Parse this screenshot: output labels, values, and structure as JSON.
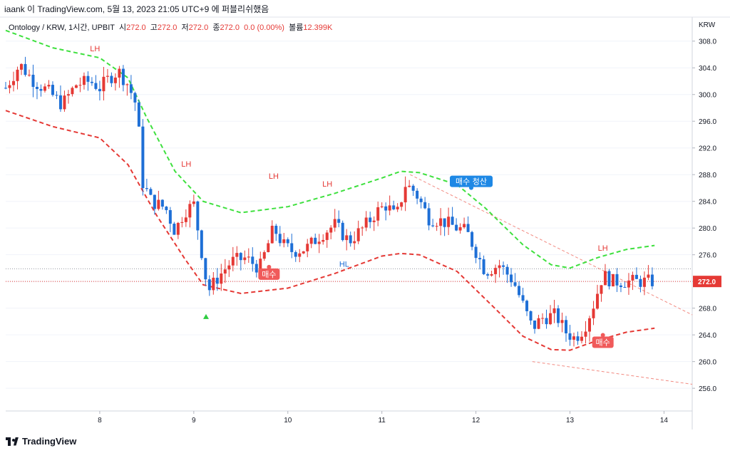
{
  "header": {
    "publish_line": "iaank 이 TradingView.com, 5월 13, 2023 21:05 UTC+9 에 퍼블리쉬했음"
  },
  "legend": {
    "symbol": "Ontology / KRW, 1시간, UPBIT",
    "open_label": "시",
    "open_value": "272.0",
    "high_label": "고",
    "high_value": "272.0",
    "low_label": "저",
    "low_value": "272.0",
    "close_label": "종",
    "close_value": "272.0",
    "change": "0.0 (0.00%)",
    "volume_label": "볼륨",
    "volume_value": "12.399K"
  },
  "axis": {
    "currency": "KRW",
    "last_price_label": "272.0"
  },
  "branding": {
    "logo_text": "TradingView"
  },
  "colors": {
    "up": "#e53935",
    "down": "#1e6fd6",
    "upper_band": "#3ee03e",
    "lower_band": "#e53935",
    "price_line": "#e53935",
    "gridline": "#f0f3fa",
    "buy_marker": "#f05a5a",
    "exit_marker": "#1e88e5"
  },
  "chart_data": {
    "type": "candlestick",
    "y_ticks": [
      308.0,
      304.0,
      300.0,
      296.0,
      292.0,
      288.0,
      284.0,
      280.0,
      276.0,
      272.0,
      268.0,
      264.0,
      260.0,
      256.0
    ],
    "ylim": [
      252.6,
      311.6
    ],
    "x_ticks": [
      {
        "label": "8",
        "x": 8
      },
      {
        "label": "9",
        "x": 9
      },
      {
        "label": "10",
        "x": 10
      },
      {
        "label": "11",
        "x": 11
      },
      {
        "label": "12",
        "x": 12
      },
      {
        "label": "13",
        "x": 13
      },
      {
        "label": "14",
        "x": 14
      }
    ],
    "xlim": [
      7.0,
      14.3
    ],
    "last_price": 272.0,
    "horizontal_dotted_level": 273.9,
    "candles_anchor": [
      [
        7.0,
        301.0
      ],
      [
        7.15,
        304.5
      ],
      [
        7.3,
        302.0
      ],
      [
        7.45,
        300.5
      ],
      [
        7.6,
        298.5
      ],
      [
        7.75,
        301.5
      ],
      [
        7.9,
        302.0
      ],
      [
        8.0,
        301.0
      ],
      [
        8.1,
        302.5
      ],
      [
        8.2,
        303.5
      ],
      [
        8.3,
        301.5
      ],
      [
        8.4,
        298.0
      ],
      [
        8.45,
        287.0
      ],
      [
        8.55,
        284.0
      ],
      [
        8.7,
        283.0
      ],
      [
        8.8,
        279.5
      ],
      [
        8.9,
        282.5
      ],
      [
        9.0,
        283.5
      ],
      [
        9.1,
        275.0
      ],
      [
        9.15,
        270.5
      ],
      [
        9.25,
        272.5
      ],
      [
        9.4,
        275.0
      ],
      [
        9.55,
        275.5
      ],
      [
        9.7,
        274.0
      ],
      [
        9.85,
        280.0
      ],
      [
        9.95,
        277.5
      ],
      [
        10.05,
        276.5
      ],
      [
        10.2,
        277.0
      ],
      [
        10.35,
        279.0
      ],
      [
        10.5,
        280.5
      ],
      [
        10.65,
        278.0
      ],
      [
        10.8,
        280.0
      ],
      [
        10.95,
        282.5
      ],
      [
        11.05,
        283.5
      ],
      [
        11.15,
        281.5
      ],
      [
        11.25,
        286.5
      ],
      [
        11.35,
        285.5
      ],
      [
        11.5,
        281.5
      ],
      [
        11.65,
        281.0
      ],
      [
        11.8,
        280.0
      ],
      [
        11.9,
        279.5
      ],
      [
        12.0,
        276.5
      ],
      [
        12.1,
        273.5
      ],
      [
        12.25,
        274.5
      ],
      [
        12.4,
        272.0
      ],
      [
        12.5,
        268.5
      ],
      [
        12.6,
        265.0
      ],
      [
        12.7,
        266.5
      ],
      [
        12.85,
        267.0
      ],
      [
        12.95,
        264.5
      ],
      [
        13.05,
        263.5
      ],
      [
        13.15,
        265.0
      ],
      [
        13.25,
        268.5
      ],
      [
        13.35,
        273.0
      ],
      [
        13.45,
        272.0
      ],
      [
        13.55,
        272.0
      ],
      [
        13.7,
        272.0
      ],
      [
        13.85,
        272.0
      ]
    ],
    "upper_band": [
      [
        7.0,
        309.6
      ],
      [
        7.5,
        307.0
      ],
      [
        8.0,
        305.5
      ],
      [
        8.3,
        302.5
      ],
      [
        8.5,
        296.5
      ],
      [
        8.8,
        288.5
      ],
      [
        9.1,
        284.0
      ],
      [
        9.5,
        282.3
      ],
      [
        10.0,
        283.2
      ],
      [
        10.5,
        285.2
      ],
      [
        11.0,
        287.5
      ],
      [
        11.2,
        288.5
      ],
      [
        11.4,
        288.3
      ],
      [
        11.8,
        286.5
      ],
      [
        12.1,
        283.0
      ],
      [
        12.5,
        277.5
      ],
      [
        12.8,
        274.5
      ],
      [
        13.0,
        274.0
      ],
      [
        13.3,
        275.6
      ],
      [
        13.6,
        276.8
      ],
      [
        13.9,
        277.4
      ]
    ],
    "lower_band": [
      [
        7.0,
        297.6
      ],
      [
        7.5,
        295.2
      ],
      [
        8.0,
        293.5
      ],
      [
        8.3,
        289.5
      ],
      [
        8.6,
        282.0
      ],
      [
        8.9,
        275.5
      ],
      [
        9.1,
        271.5
      ],
      [
        9.5,
        270.2
      ],
      [
        10.0,
        271.0
      ],
      [
        10.5,
        273.2
      ],
      [
        11.0,
        275.8
      ],
      [
        11.2,
        276.2
      ],
      [
        11.4,
        276.0
      ],
      [
        11.8,
        273.5
      ],
      [
        12.2,
        268.0
      ],
      [
        12.5,
        263.8
      ],
      [
        12.8,
        261.8
      ],
      [
        13.0,
        261.7
      ],
      [
        13.3,
        263.2
      ],
      [
        13.6,
        264.4
      ],
      [
        13.9,
        265.0
      ]
    ],
    "trendlines": [
      {
        "from": [
          11.3,
          288.0
        ],
        "to": [
          14.3,
          267.0
        ]
      },
      {
        "from": [
          12.6,
          260.0
        ],
        "to": [
          14.3,
          256.6
        ]
      }
    ],
    "annotations": [
      {
        "text": "LH",
        "x": 7.95,
        "y": 306.5,
        "color": "#e53935"
      },
      {
        "text": "LH",
        "x": 8.92,
        "y": 289.2,
        "color": "#e53935"
      },
      {
        "text": "LH",
        "x": 9.85,
        "y": 287.4,
        "color": "#e53935"
      },
      {
        "text": "LH",
        "x": 10.42,
        "y": 286.2,
        "color": "#e53935"
      },
      {
        "text": "HL",
        "x": 10.6,
        "y": 274.2,
        "color": "#1e6fd6"
      },
      {
        "text": "LH",
        "x": 13.35,
        "y": 276.6,
        "color": "#e53935"
      }
    ],
    "signals": [
      {
        "text": "매수",
        "x": 9.8,
        "y": 273.1,
        "kind": "buy"
      },
      {
        "text": "매수",
        "x": 13.35,
        "y": 262.9,
        "kind": "buy"
      },
      {
        "text": "매수 청산",
        "x": 11.95,
        "y": 287.0,
        "kind": "exit"
      }
    ],
    "triangle_marker": {
      "x": 9.13,
      "y": 266.7
    }
  }
}
